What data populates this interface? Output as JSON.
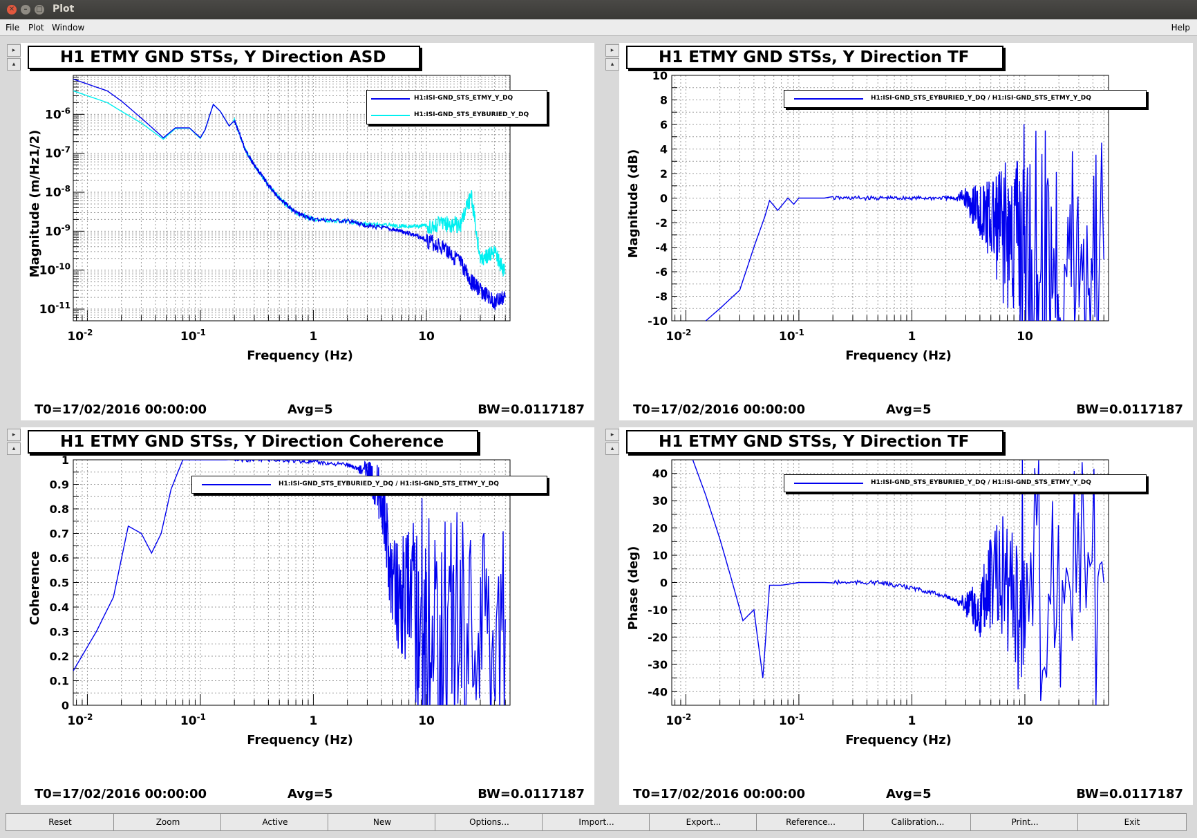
{
  "window": {
    "title": "Plot"
  },
  "menu": {
    "file": "File",
    "plot": "Plot",
    "window": "Window",
    "help": "Help"
  },
  "colors": {
    "asd_etmy": "#0000ee",
    "asd_eyburied": "#00f0f0",
    "tf": "#0000ee"
  },
  "panels": [
    {
      "title": "H1 ETMY GND STSs, Y Direction ASD",
      "ylabel": "Magnitude (m/Hz1/2)",
      "xlabel": "Frequency (Hz)",
      "legend": [
        {
          "text": "H1:ISI-GND_STS_ETMY_Y_DQ"
        },
        {
          "text": "H1:ISI-GND_STS_EYBURIED_Y_DQ"
        }
      ],
      "t0": "T0=17/02/2016 00:00:00",
      "avg": "Avg=5",
      "bw": "BW=0.0117187"
    },
    {
      "title": "H1 ETMY GND STSs, Y Direction TF",
      "ylabel": "Magnitude (dB)",
      "xlabel": "Frequency (Hz)",
      "legend": [
        {
          "text": "H1:ISI-GND_STS_EYBURIED_Y_DQ / H1:ISI-GND_STS_ETMY_Y_DQ"
        }
      ],
      "t0": "T0=17/02/2016 00:00:00",
      "avg": "Avg=5",
      "bw": "BW=0.0117187"
    },
    {
      "title": "H1 ETMY GND STSs, Y Direction Coherence",
      "ylabel": "Coherence",
      "xlabel": "Frequency (Hz)",
      "legend": [
        {
          "text": "H1:ISI-GND_STS_EYBURIED_Y_DQ / H1:ISI-GND_STS_ETMY_Y_DQ"
        }
      ],
      "t0": "T0=17/02/2016 00:00:00",
      "avg": "Avg=5",
      "bw": "BW=0.0117187"
    },
    {
      "title": "H1 ETMY GND STSs, Y Direction TF",
      "ylabel": "Phase (deg)",
      "xlabel": "Frequency (Hz)",
      "legend": [
        {
          "text": "H1:ISI-GND_STS_EYBURIED_Y_DQ / H1:ISI-GND_STS_ETMY_Y_DQ"
        }
      ],
      "t0": "T0=17/02/2016 00:00:00",
      "avg": "Avg=5",
      "bw": "BW=0.0117187"
    }
  ],
  "buttons": [
    "Reset",
    "Zoom",
    "Active",
    "New",
    "Options...",
    "Import...",
    "Export...",
    "Reference...",
    "Calibration...",
    "Print...",
    "Exit"
  ],
  "chart_data": [
    {
      "type": "line",
      "xscale": "log",
      "yscale": "log",
      "xlim": [
        0.0075,
        55
      ],
      "ylim": [
        5e-12,
        1e-05
      ],
      "xticks": [
        "10-2",
        "10-1",
        "1",
        "10"
      ],
      "yticks": [
        "10-11",
        "10-10",
        "10-9",
        "10-8",
        "10-7",
        "10-6"
      ],
      "series": [
        {
          "name": "H1:ISI-GND_STS_ETMY_Y_DQ",
          "x": [
            0.0075,
            0.01,
            0.015,
            0.02,
            0.03,
            0.047,
            0.06,
            0.08,
            0.1,
            0.11,
            0.13,
            0.15,
            0.18,
            0.2,
            0.25,
            0.3,
            0.4,
            0.5,
            0.7,
            1,
            2,
            3,
            5,
            7,
            10,
            15,
            20,
            25,
            30,
            40,
            50
          ],
          "y": [
            8e-06,
            6e-06,
            4e-06,
            2.2e-06,
            8e-07,
            2.5e-07,
            4.5e-07,
            4.5e-07,
            2.5e-07,
            4e-07,
            1.8e-06,
            1.2e-06,
            5e-07,
            7e-07,
            1.2e-07,
            5e-08,
            1.5e-08,
            7e-09,
            3e-09,
            2e-09,
            1.8e-09,
            1.4e-09,
            1.1e-09,
            9e-10,
            6e-10,
            3.5e-10,
            1.5e-10,
            5e-11,
            3e-11,
            1.5e-11,
            2e-11
          ]
        },
        {
          "name": "H1:ISI-GND_STS_EYBURIED_Y_DQ",
          "x": [
            0.0075,
            0.01,
            0.015,
            0.02,
            0.03,
            0.047,
            0.06,
            0.08,
            0.1,
            0.11,
            0.13,
            0.15,
            0.18,
            0.2,
            0.25,
            0.3,
            0.4,
            0.5,
            0.7,
            1,
            2,
            3,
            5,
            7,
            10,
            15,
            20,
            25,
            30,
            40,
            50
          ],
          "y": [
            4e-06,
            3e-06,
            2e-06,
            1.2e-06,
            6e-07,
            2.3e-07,
            4.3e-07,
            4.4e-07,
            2.4e-07,
            4e-07,
            1.8e-06,
            1.2e-06,
            5e-07,
            7e-07,
            1.2e-07,
            5e-08,
            1.5e-08,
            7e-09,
            3e-09,
            2e-09,
            1.8e-09,
            1.5e-09,
            1.4e-09,
            1.3e-09,
            1.4e-09,
            1.5e-09,
            1.5e-09,
            8e-09,
            2e-10,
            3e-10,
            8e-11
          ]
        }
      ]
    },
    {
      "type": "line",
      "xscale": "log",
      "xlim": [
        0.0075,
        55
      ],
      "ylim": [
        -10,
        10
      ],
      "xticks": [
        "10-2",
        "10-1",
        "1",
        "10"
      ],
      "yticks": [
        10,
        8,
        6,
        4,
        2,
        0,
        -2,
        -4,
        -6,
        -8,
        -10
      ],
      "series": [
        {
          "name": "H1:ISI-GND_STS_EYBURIED_Y_DQ / H1:ISI-GND_STS_ETMY_Y_DQ",
          "x": [
            0.015,
            0.02,
            0.03,
            0.04,
            0.05,
            0.055,
            0.065,
            0.08,
            0.09,
            0.1,
            0.2,
            0.5,
            1,
            2,
            3,
            4,
            5,
            7,
            10,
            20,
            50
          ],
          "y": [
            -10,
            -9,
            -7.5,
            -4,
            -1.5,
            -0.2,
            -1,
            0,
            -0.5,
            0,
            0,
            0,
            0,
            0,
            0,
            -1,
            -2,
            -3,
            -4,
            -5,
            -5
          ]
        }
      ]
    },
    {
      "type": "line",
      "xscale": "log",
      "xlim": [
        0.0075,
        55
      ],
      "ylim": [
        0,
        1
      ],
      "xticks": [
        "10-2",
        "10-1",
        "1",
        "10"
      ],
      "yticks": [
        1,
        0.9,
        0.8,
        0.7,
        0.6,
        0.5,
        0.4,
        0.3,
        0.2,
        0.1,
        0
      ],
      "series": [
        {
          "name": "H1:ISI-GND_STS_EYBURIED_Y_DQ / H1:ISI-GND_STS_ETMY_Y_DQ",
          "x": [
            0.0075,
            0.012,
            0.017,
            0.023,
            0.03,
            0.037,
            0.045,
            0.055,
            0.07,
            0.1,
            0.2,
            0.5,
            1,
            2,
            3,
            4,
            5,
            7,
            10,
            20,
            50
          ],
          "y": [
            0.14,
            0.3,
            0.44,
            0.73,
            0.7,
            0.62,
            0.7,
            0.88,
            1,
            1,
            1,
            1,
            0.99,
            0.98,
            0.95,
            0.85,
            0.5,
            0.4,
            0.35,
            0.35,
            0.35
          ]
        }
      ]
    },
    {
      "type": "line",
      "xscale": "log",
      "xlim": [
        0.0075,
        55
      ],
      "ylim": [
        -45,
        45
      ],
      "xticks": [
        "10-2",
        "10-1",
        "1",
        "10"
      ],
      "yticks": [
        40,
        30,
        20,
        10,
        0,
        -10,
        -20,
        -30,
        -40
      ],
      "series": [
        {
          "name": "H1:ISI-GND_STS_EYBURIED_Y_DQ / H1:ISI-GND_STS_ETMY_Y_DQ",
          "x": [
            0.0115,
            0.015,
            0.02,
            0.025,
            0.032,
            0.04,
            0.048,
            0.055,
            0.07,
            0.1,
            0.2,
            0.5,
            1,
            2,
            3,
            4,
            5,
            10,
            50
          ],
          "y": [
            45,
            32,
            16,
            2,
            -14,
            -10,
            -35,
            -1,
            -1,
            0,
            0,
            0,
            -2,
            -5,
            -8,
            -10,
            0,
            0,
            0
          ]
        }
      ]
    }
  ]
}
